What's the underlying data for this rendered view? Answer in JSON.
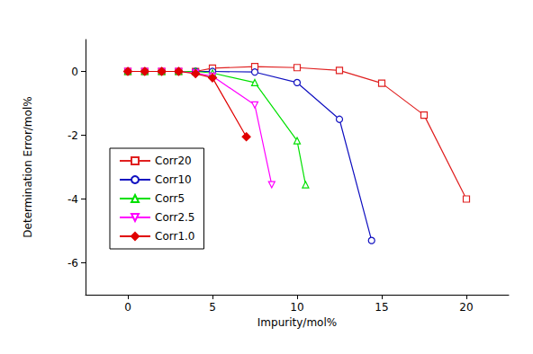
{
  "chart_data": {
    "type": "line",
    "x_label": "Impurity/mol%",
    "y_label": "Determination Error/mol%",
    "xlim": [
      -2.5,
      22.5
    ],
    "xticks": [
      0,
      5,
      10,
      15,
      20
    ],
    "ylim": [
      -7,
      1
    ],
    "yticks": [
      -6,
      -4,
      -2,
      0
    ],
    "grid": false,
    "legend": "lower left",
    "series": [
      {
        "name": "Corr20",
        "color": "#e02020",
        "marker": "square-open",
        "x": [
          0,
          1,
          2,
          3,
          4,
          5,
          7.5,
          10,
          12.5,
          15,
          17.5,
          20
        ],
        "values": [
          0,
          0,
          0,
          0,
          0,
          0.1,
          0.15,
          0.12,
          0.03,
          -0.37,
          -1.37,
          -4.0
        ]
      },
      {
        "name": "Corr10",
        "color": "#1010c0",
        "marker": "circle-open",
        "x": [
          0,
          1,
          2,
          3,
          4,
          5,
          7.5,
          10,
          12.5,
          14.4
        ],
        "values": [
          0,
          0,
          0,
          0,
          0,
          0,
          -0.02,
          -0.35,
          -1.5,
          -5.3
        ]
      },
      {
        "name": "Corr5",
        "color": "#00e000",
        "marker": "triangle-open",
        "x": [
          0,
          1,
          2,
          3,
          4,
          5,
          7.5,
          10,
          10.5
        ],
        "values": [
          0,
          0,
          0,
          0,
          0,
          -0.05,
          -0.35,
          -2.17,
          -3.55
        ]
      },
      {
        "name": "Corr2.5",
        "color": "#ff00ff",
        "marker": "triangle-down-open",
        "x": [
          0,
          1,
          2,
          3,
          4,
          5,
          7.5,
          8.5
        ],
        "values": [
          0,
          0,
          0,
          0,
          -0.05,
          -0.15,
          -1.05,
          -3.55
        ]
      },
      {
        "name": "Corr1.0",
        "color": "#e00000",
        "marker": "diamond-filled",
        "x": [
          0,
          1,
          2,
          3,
          4,
          5,
          7
        ],
        "values": [
          0,
          0,
          0,
          0,
          -0.07,
          -0.2,
          -2.05
        ]
      }
    ]
  }
}
